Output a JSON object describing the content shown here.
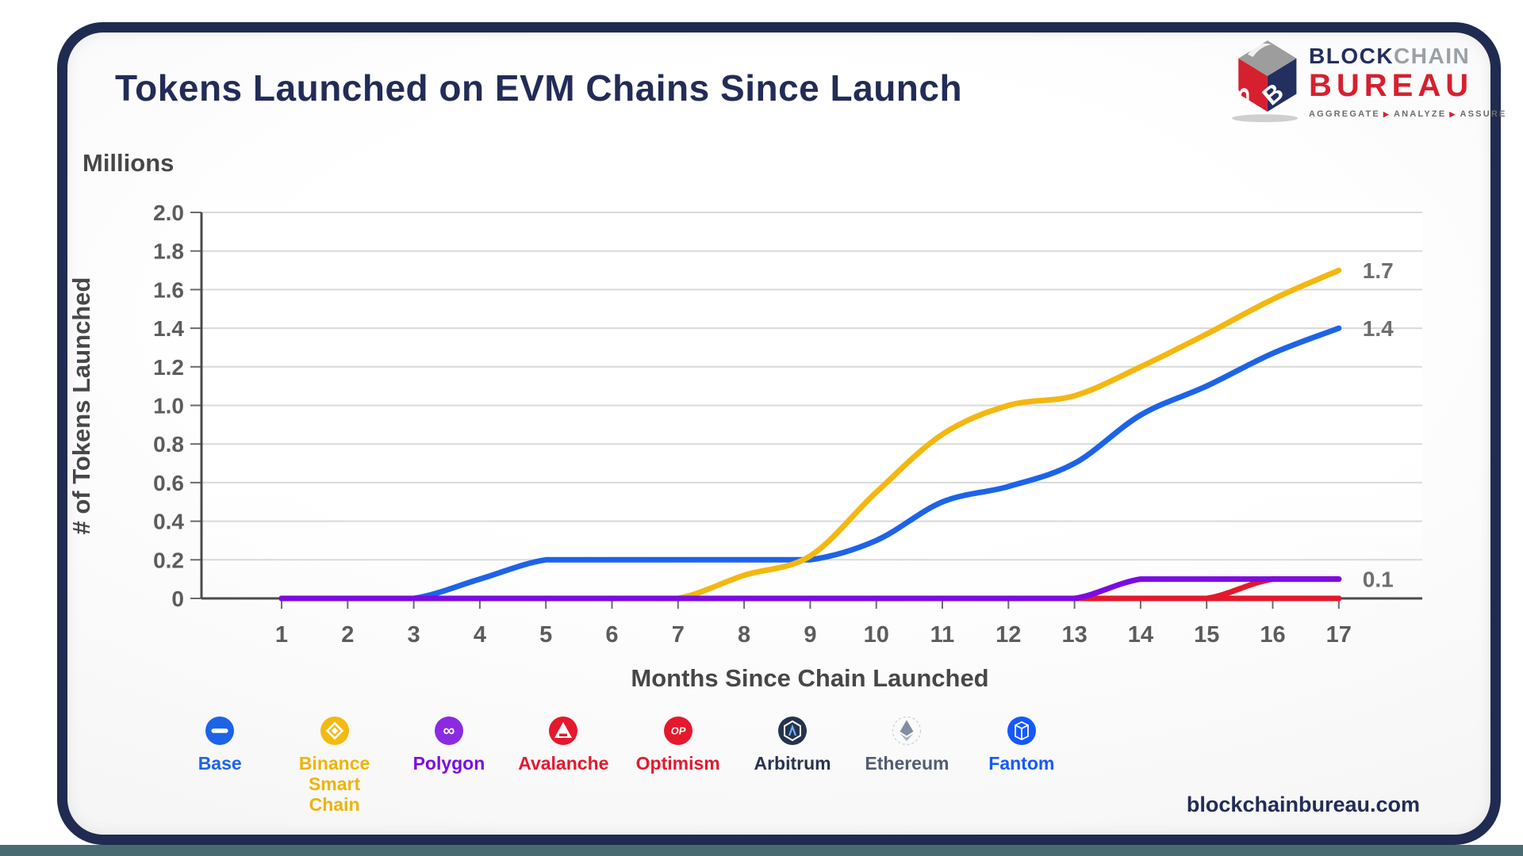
{
  "header": {
    "title": "Tokens Launched on EVM Chains Since Launch"
  },
  "logo": {
    "word_block": "BLOCK",
    "word_chain": "CHAIN",
    "word_bureau": "BUREAU",
    "tagline": [
      "AGGREGATE",
      "ANALYZE",
      "ASSURE"
    ],
    "tagline_separator": "▶"
  },
  "footer": {
    "website": "blockchainbureau.com"
  },
  "chart_data": {
    "type": "line",
    "title": "Tokens Launched on EVM Chains Since Launch",
    "unit_label": "Millions",
    "ylabel": "# of Tokens Launched",
    "xlabel": "Months Since Chain Launched",
    "x": [
      1,
      2,
      3,
      4,
      5,
      6,
      7,
      8,
      9,
      10,
      11,
      12,
      13,
      14,
      15,
      16,
      17
    ],
    "ylim": [
      0,
      2.0
    ],
    "ytick_step": 0.2,
    "ytick_labels": [
      "0",
      "0.2",
      "0.4",
      "0.6",
      "0.8",
      "1.0",
      "1.2",
      "1.4",
      "1.6",
      "1.8",
      "2.0"
    ],
    "grid": true,
    "legend_position": "bottom",
    "end_label_color": "#6e6e6e",
    "series": [
      {
        "name": "Base",
        "color": "#1d63e8",
        "values": [
          0,
          0,
          0,
          0.1,
          0.2,
          0.2,
          0.2,
          0.2,
          0.2,
          0.3,
          0.5,
          0.58,
          0.7,
          0.95,
          1.1,
          1.27,
          1.4
        ],
        "end_label": "1.4"
      },
      {
        "name": "Binance Smart Chain",
        "color": "#f3b70f",
        "values": [
          0,
          0,
          0,
          0,
          0,
          0,
          0,
          0.12,
          0.22,
          0.55,
          0.85,
          1.0,
          1.05,
          1.2,
          1.37,
          1.55,
          1.7
        ],
        "end_label": "1.7"
      },
      {
        "name": "Polygon",
        "color": "#7c0be0",
        "values": [
          0,
          0,
          0,
          0,
          0,
          0,
          0,
          0,
          0,
          0,
          0,
          0,
          0,
          0.1,
          0.1,
          0.1,
          0.1
        ],
        "end_label": "0.1"
      },
      {
        "name": "Avalanche",
        "color": "#e5182d",
        "values": [
          0,
          0,
          0,
          0,
          0,
          0,
          0,
          0,
          0,
          0,
          0,
          0,
          0,
          0,
          0,
          0.1,
          0.1
        ]
      },
      {
        "name": "Optimism",
        "color": "#e5182d",
        "values": [
          0,
          0,
          0,
          0,
          0,
          0,
          0,
          0,
          0,
          0,
          0,
          0,
          0,
          0,
          0,
          0,
          0
        ]
      },
      {
        "name": "Arbitrum",
        "color": "#2b3850",
        "values": [
          0,
          0,
          0,
          0,
          0,
          0,
          0,
          0,
          0,
          0,
          0,
          0,
          0,
          0,
          0,
          0,
          0
        ]
      },
      {
        "name": "Ethereum",
        "color": "#9aa2b2",
        "values": [
          0,
          0,
          0,
          0,
          0,
          0,
          0,
          0,
          0,
          0,
          0,
          0,
          0,
          0,
          0,
          0,
          0
        ]
      },
      {
        "name": "Fantom",
        "color": "#1558ff",
        "values": [
          0,
          0,
          0,
          0,
          0,
          0,
          0,
          0,
          0,
          0,
          0,
          0,
          0,
          0,
          0,
          0,
          0
        ]
      }
    ],
    "draw_order": [
      "Fantom",
      "Ethereum",
      "Arbitrum",
      "Optimism",
      "Base",
      "Binance Smart Chain",
      "Avalanche",
      "Polygon"
    ]
  },
  "legend": {
    "items": [
      {
        "label": "Base",
        "color": "#1d63e8"
      },
      {
        "label": "Binance Smart Chain",
        "color": "#edb407"
      },
      {
        "label": "Polygon",
        "color": "#7c0be0"
      },
      {
        "label": "Avalanche",
        "color": "#e5182d"
      },
      {
        "label": "Optimism",
        "color": "#e5182d"
      },
      {
        "label": "Arbitrum",
        "color": "#28334e"
      },
      {
        "label": "Ethereum",
        "color": "#525c72"
      },
      {
        "label": "Fantom",
        "color": "#1558ff"
      }
    ]
  }
}
